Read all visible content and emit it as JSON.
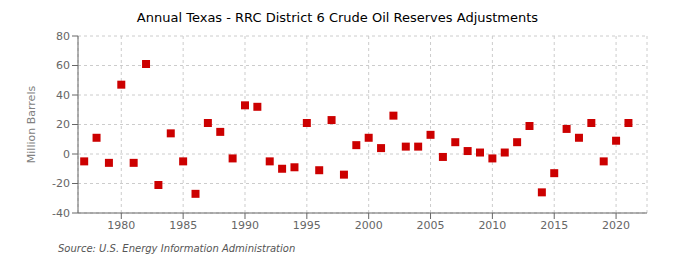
{
  "chart_data": {
    "type": "scatter",
    "title": "Annual Texas - RRC District 6 Crude Oil Reserves Adjustments",
    "y_label": "Million Barrels",
    "annotations": [
      "Source: U.S. Energy Information Administration"
    ],
    "color": "#cc0000",
    "marker": "square",
    "grid": true,
    "xlim": [
      1976.5,
      2022.5
    ],
    "ylim": [
      -40,
      80
    ],
    "xticks": [
      1980,
      1985,
      1990,
      1995,
      2000,
      2005,
      2010,
      2015,
      2020
    ],
    "yticks": [
      -40,
      -20,
      0,
      20,
      40,
      60,
      80
    ],
    "x": [
      1977,
      1978,
      1979,
      1980,
      1981,
      1982,
      1983,
      1984,
      1985,
      1986,
      1987,
      1988,
      1989,
      1990,
      1991,
      1992,
      1993,
      1994,
      1995,
      1996,
      1997,
      1998,
      1999,
      2000,
      2001,
      2002,
      2003,
      2004,
      2005,
      2006,
      2007,
      2008,
      2009,
      2010,
      2011,
      2012,
      2013,
      2014,
      2015,
      2016,
      2017,
      2018,
      2019,
      2020,
      2021
    ],
    "values": [
      -5,
      11,
      -6,
      47,
      -6,
      61,
      -21,
      14,
      -5,
      -27,
      21,
      15,
      -3,
      33,
      32,
      -5,
      -10,
      -9,
      21,
      -11,
      23,
      -14,
      6,
      11,
      4,
      26,
      5,
      5,
      13,
      -2,
      8,
      2,
      1,
      -3,
      1,
      8,
      19,
      -26,
      -13,
      17,
      11,
      21,
      -5,
      9,
      21
    ]
  }
}
